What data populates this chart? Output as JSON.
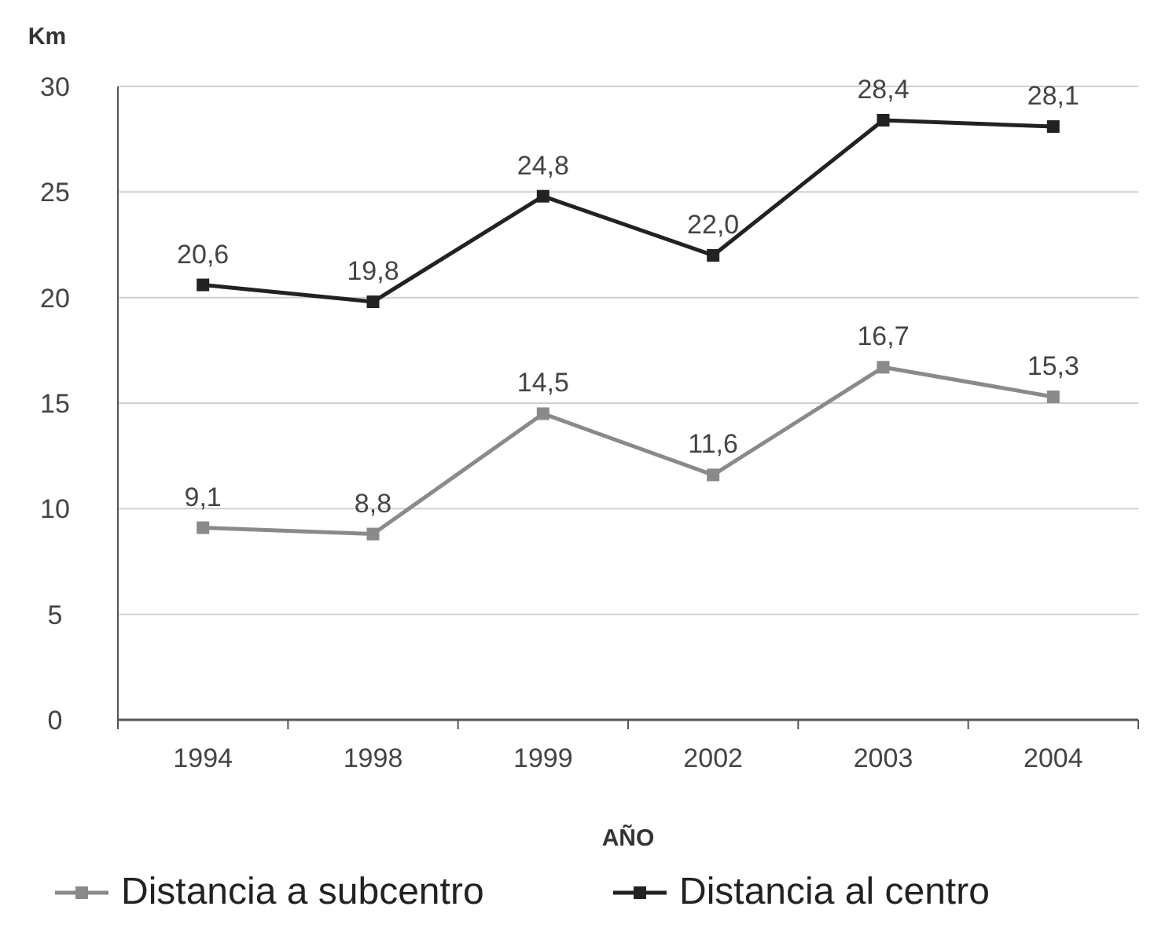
{
  "chart_data": {
    "type": "line",
    "xlabel": "AÑO",
    "ylabel": "Km",
    "categories": [
      "1994",
      "1998",
      "1999",
      "2002",
      "2003",
      "2004"
    ],
    "series": [
      {
        "name": "Distancia a subcentro",
        "color": "#8a8a8a",
        "values": [
          9.1,
          8.8,
          14.5,
          11.6,
          16.7,
          15.3
        ],
        "value_labels": [
          "9,1",
          "8,8",
          "14,5",
          "11,6",
          "16,7",
          "15,3"
        ]
      },
      {
        "name": "Distancia al centro",
        "color": "#222222",
        "values": [
          20.6,
          19.8,
          24.8,
          22.0,
          28.4,
          28.1
        ],
        "value_labels": [
          "20,6",
          "19,8",
          "24,8",
          "22,0",
          "28,4",
          "28,1"
        ]
      }
    ],
    "ylim": [
      0,
      30
    ],
    "yticks": [
      0,
      5,
      10,
      15,
      20,
      25,
      30
    ],
    "grid": "y",
    "legend": "bottom",
    "marker": "square",
    "line_style": "solid"
  }
}
